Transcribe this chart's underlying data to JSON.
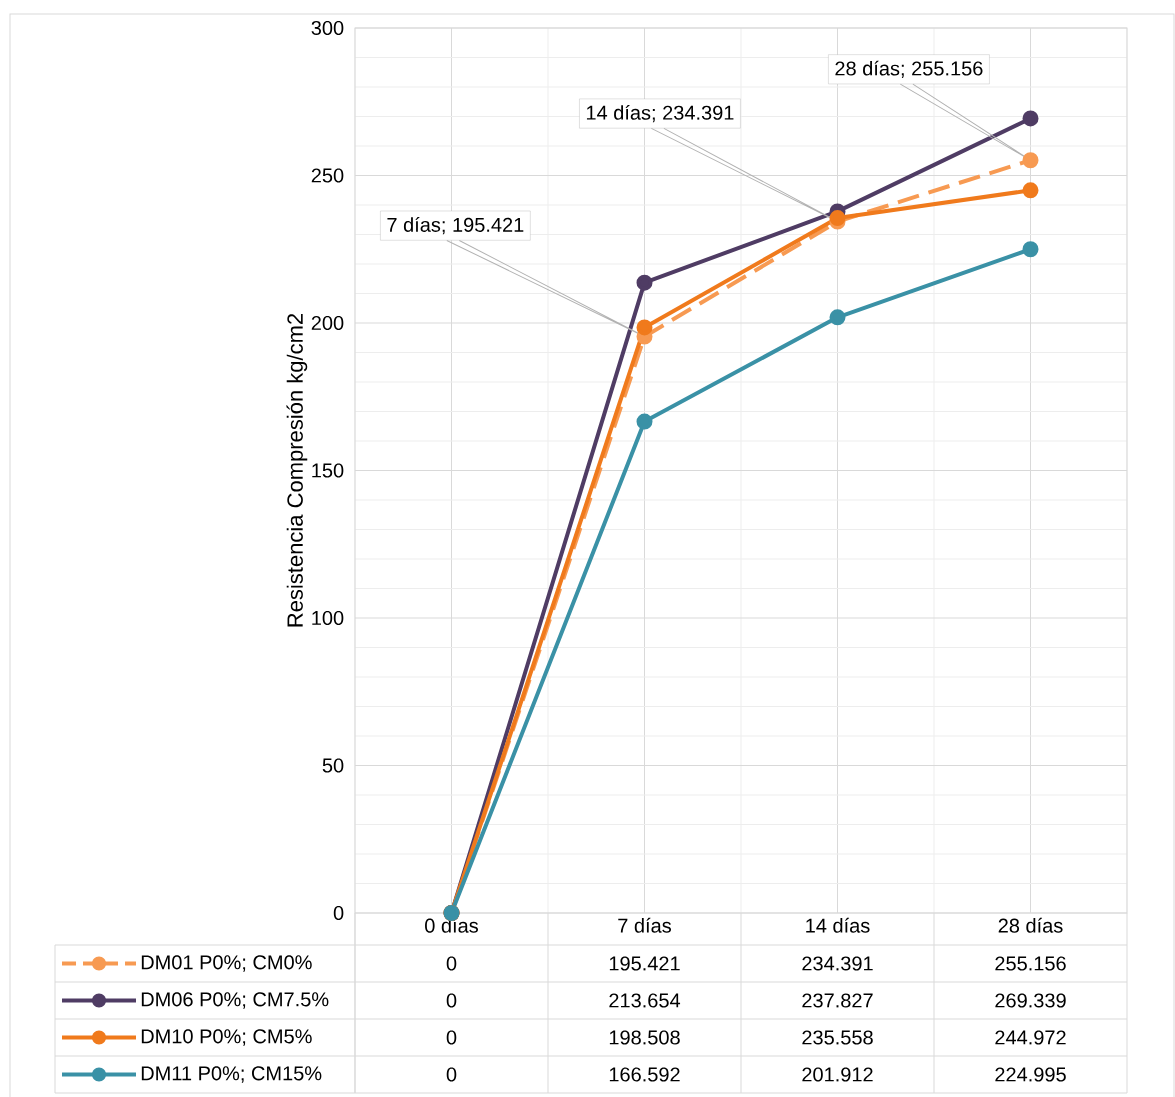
{
  "chart_data": {
    "type": "line",
    "ylabel": "Resistencia  Compresión  kg/cm2",
    "categories": [
      "0 días",
      "7 días",
      "14 días",
      "28 días"
    ],
    "series": [
      {
        "name": "DM01 P0%; CM0%",
        "color": "#f79a52",
        "line_style": "dashed",
        "values": [
          0,
          195.421,
          234.391,
          255.156
        ]
      },
      {
        "name": "DM06 P0%; CM7.5%",
        "color": "#4f3c64",
        "line_style": "solid",
        "values": [
          0,
          213.654,
          237.827,
          269.339
        ]
      },
      {
        "name": "DM10 P0%; CM5%",
        "color": "#f07a1c",
        "line_style": "solid",
        "values": [
          0,
          198.508,
          235.558,
          244.972
        ]
      },
      {
        "name": "DM11 P0%; CM15%",
        "color": "#3a91a6",
        "line_style": "solid",
        "values": [
          0,
          166.592,
          201.912,
          224.995
        ]
      }
    ],
    "ylim": [
      0,
      300
    ],
    "yticks": [
      0,
      50,
      100,
      150,
      200,
      250,
      300
    ],
    "annotations": [
      "7 días; 195.421",
      "14 días; 234.391",
      "28 días; 255.156"
    ],
    "grid": true,
    "marker": "circle",
    "legend": "bottom",
    "data_labels": true
  }
}
